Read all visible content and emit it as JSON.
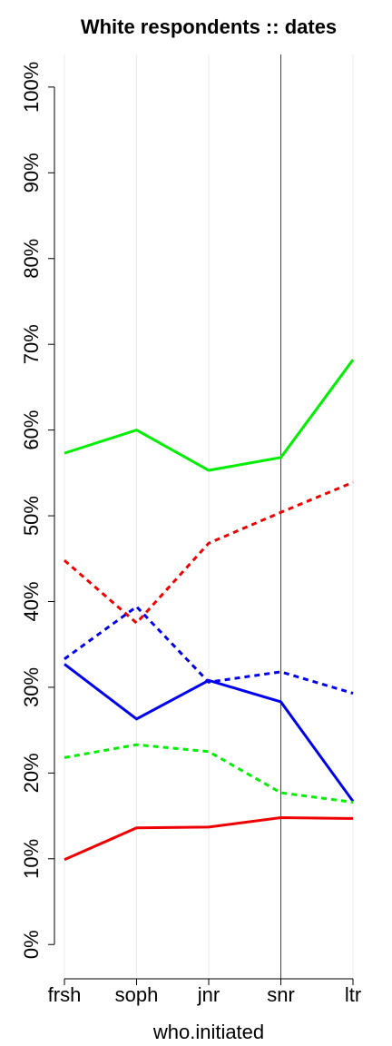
{
  "chart_data": {
    "type": "line",
    "title": "White respondents :: dates",
    "xlabel": "who.initiated",
    "categories": [
      "frsh",
      "soph",
      "jnr",
      "snr",
      "ltr"
    ],
    "highlight_category": "snr",
    "series": [
      {
        "color": "#00ee00",
        "dashed": false,
        "values": [
          57.3,
          60.0,
          55.3,
          56.8,
          68.2
        ]
      },
      {
        "color": "#ee0000",
        "dashed": true,
        "values": [
          44.8,
          37.5,
          46.8,
          50.4,
          53.9
        ]
      },
      {
        "color": "#0000ee",
        "dashed": true,
        "values": [
          33.3,
          39.4,
          30.6,
          31.8,
          29.3
        ]
      },
      {
        "color": "#0000ee",
        "dashed": false,
        "values": [
          32.7,
          26.3,
          30.8,
          28.3,
          16.7
        ]
      },
      {
        "color": "#00ee00",
        "dashed": true,
        "values": [
          21.8,
          23.3,
          22.5,
          17.7,
          16.6
        ]
      },
      {
        "color": "#ee0000",
        "dashed": false,
        "values": [
          9.9,
          13.6,
          13.7,
          14.8,
          14.7
        ]
      }
    ],
    "ylim": [
      -4,
      103.8
    ],
    "yticks": [
      {
        "value": 0,
        "label": "0%"
      },
      {
        "value": 10,
        "label": "10%"
      },
      {
        "value": 20,
        "label": "20%"
      },
      {
        "value": 30,
        "label": "30%"
      },
      {
        "value": 40,
        "label": "40%"
      },
      {
        "value": 50,
        "label": "50%"
      },
      {
        "value": 60,
        "label": "60%"
      },
      {
        "value": 70,
        "label": "70%"
      },
      {
        "value": 80,
        "label": "80%"
      },
      {
        "value": 90,
        "label": "90%"
      },
      {
        "value": 100,
        "label": "100%"
      }
    ],
    "grid": true
  }
}
